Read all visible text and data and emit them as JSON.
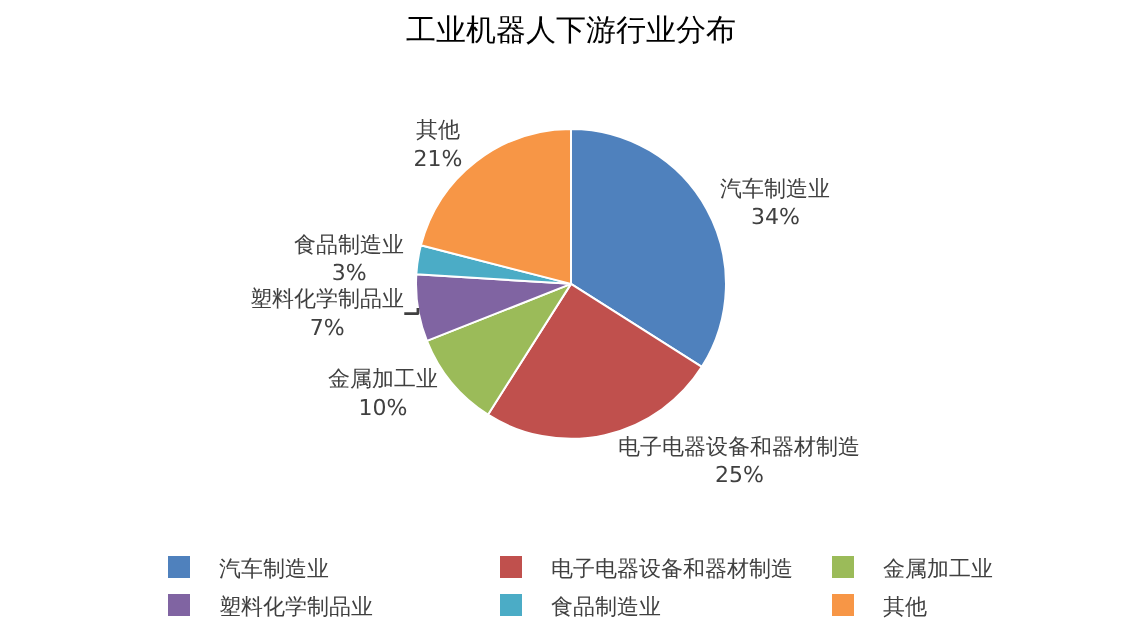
{
  "chart_data": {
    "type": "pie",
    "title": "工业机器人下游行业分布",
    "categories": [
      "汽车制造业",
      "电子电器设备和器材制造",
      "金属加工业",
      "塑料化学制品业",
      "食品制造业",
      "其他"
    ],
    "values": [
      34,
      25,
      10,
      7,
      3,
      21
    ],
    "value_labels": [
      "34%",
      "25%",
      "10%",
      "7%",
      "3%",
      "21%"
    ],
    "colors": [
      "#4f81bd",
      "#c0504d",
      "#9bbb59",
      "#8064a2",
      "#4bacc6",
      "#f79646"
    ],
    "legend": "bottom"
  }
}
